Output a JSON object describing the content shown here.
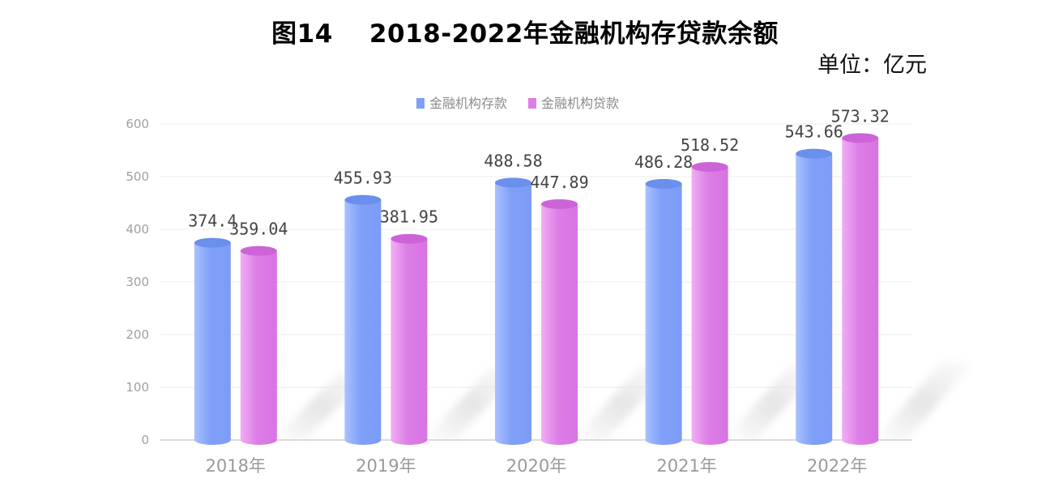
{
  "title": "图14    2018-2022年金融机构存贷款余额",
  "unit": "单位：亿元",
  "colors": {
    "deposit": "#7f9ff8",
    "loan": "#dd7ee6",
    "axis_text": "#a0a0a0",
    "grid": "#e6e6e6"
  },
  "chart_data": {
    "type": "bar",
    "categories": [
      "2018年",
      "2019年",
      "2020年",
      "2021年",
      "2022年"
    ],
    "series": [
      {
        "name": "金融机构存款",
        "values": [
          374.4,
          455.93,
          488.58,
          486.28,
          543.66
        ],
        "labels": [
          "374.4",
          "455.93",
          "488.58",
          "486.28",
          "543.66"
        ]
      },
      {
        "name": "金融机构贷款",
        "values": [
          359.04,
          381.95,
          447.89,
          518.52,
          573.32
        ],
        "labels": [
          "359.04",
          "381.95",
          "447.89",
          "518.52",
          "573.32"
        ]
      }
    ],
    "ylim": [
      0,
      600
    ],
    "yticks": [
      "0",
      "100",
      "200",
      "300",
      "400",
      "500",
      "600"
    ],
    "grid": true,
    "legend_position": "top-center"
  }
}
